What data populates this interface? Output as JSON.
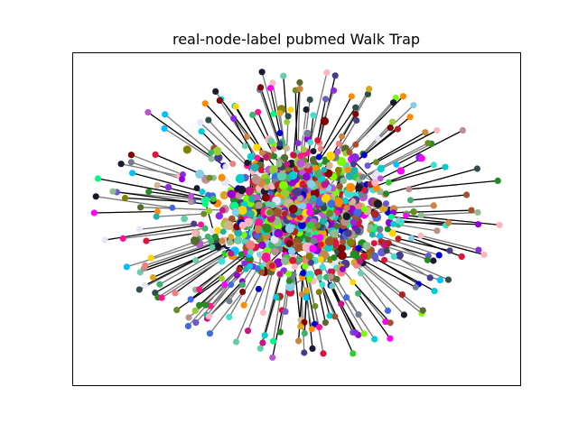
{
  "figure": {
    "title": "real-node-label pubmed Walk Trap"
  },
  "graph": {
    "type": "network",
    "layout": "force-directed hairball",
    "axes_visible": false,
    "edge_colors": [
      "#000000",
      "#777777"
    ],
    "node_palette": [
      "#1a1a2e",
      "#228b22",
      "#7cfc00",
      "#32cd32",
      "#00ff7f",
      "#3cb371",
      "#00ced1",
      "#20b2aa",
      "#40e0d0",
      "#4169e1",
      "#0000cd",
      "#6a5acd",
      "#8a2be2",
      "#9400d3",
      "#ba55d3",
      "#ff00ff",
      "#c71585",
      "#dc143c",
      "#b22222",
      "#800000",
      "#ff8c00",
      "#daa520",
      "#d2b48c",
      "#bc8f8f",
      "#f08080",
      "#ffb6c1",
      "#808000",
      "#556b2f",
      "#6b8e23",
      "#8fbc8f",
      "#2f4f4f",
      "#708090",
      "#87ceeb",
      "#e6e6fa",
      "#a0522d",
      "#cd853f",
      "#ffd700",
      "#ff1493",
      "#00bfff",
      "#483d8b",
      "#9acd32",
      "#66cdaa"
    ]
  }
}
